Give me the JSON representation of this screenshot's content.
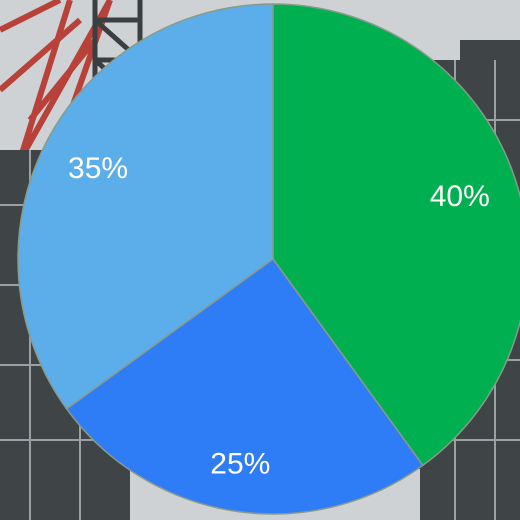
{
  "chart_data": {
    "type": "pie",
    "start_angle_deg": 0,
    "direction": "clockwise",
    "slices": [
      {
        "label": "40%",
        "value": 40,
        "color": "#00b050"
      },
      {
        "label": "25%",
        "value": 25,
        "color": "#2e7cf6"
      },
      {
        "label": "35%",
        "value": 35,
        "color": "#5baeea"
      }
    ],
    "title": "",
    "legend": "none"
  },
  "background": {
    "sky_color": "#c9cccf",
    "structure_color": "#3f4446",
    "crane_color": "#b8413a"
  }
}
